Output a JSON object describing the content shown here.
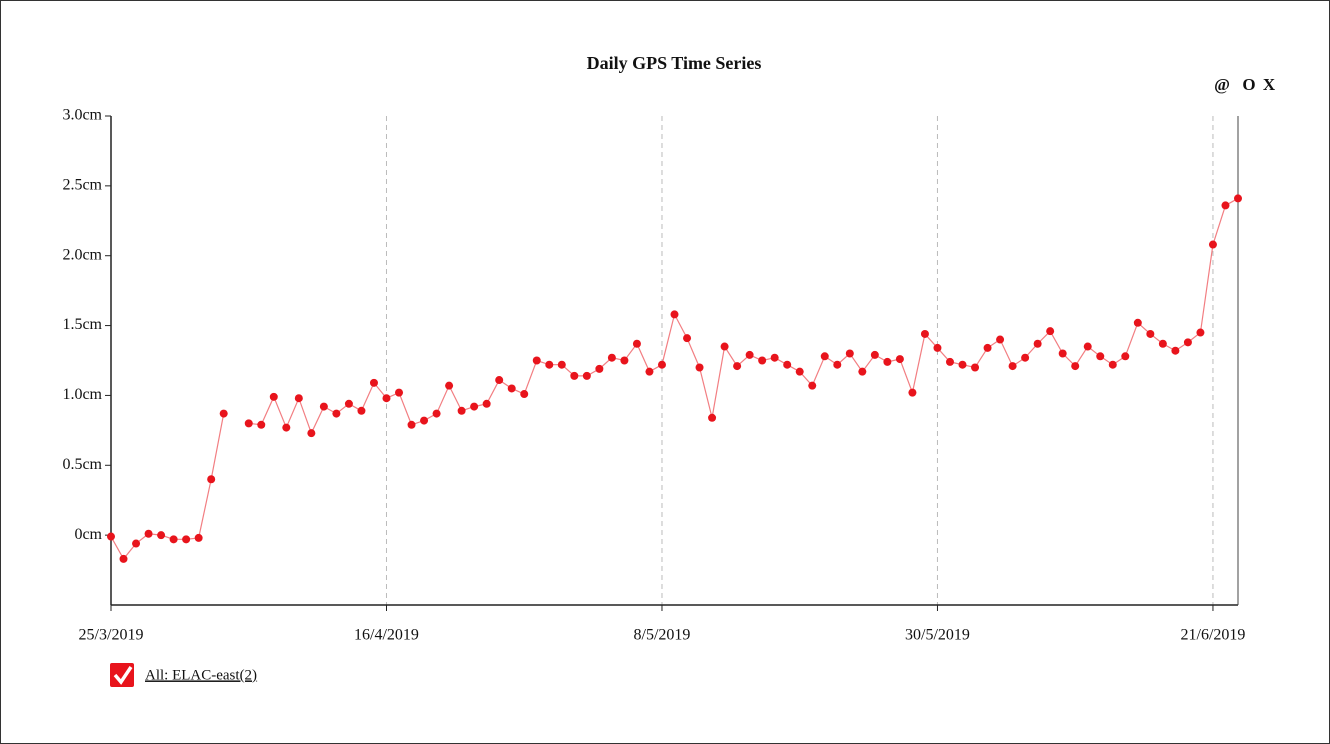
{
  "chart_data": {
    "type": "line",
    "title": "Daily GPS Time Series",
    "x": [
      "2019-03-25",
      "2019-03-26",
      "2019-03-27",
      "2019-03-28",
      "2019-03-29",
      "2019-03-30",
      "2019-03-31",
      "2019-04-01",
      "2019-04-02",
      "2019-04-03",
      "2019-04-04",
      "2019-04-05",
      "2019-04-06",
      "2019-04-07",
      "2019-04-08",
      "2019-04-09",
      "2019-04-10",
      "2019-04-11",
      "2019-04-12",
      "2019-04-13",
      "2019-04-14",
      "2019-04-15",
      "2019-04-16",
      "2019-04-17",
      "2019-04-18",
      "2019-04-19",
      "2019-04-20",
      "2019-04-21",
      "2019-04-22",
      "2019-04-23",
      "2019-04-24",
      "2019-04-25",
      "2019-04-26",
      "2019-04-27",
      "2019-04-28",
      "2019-04-29",
      "2019-04-30",
      "2019-05-01",
      "2019-05-02",
      "2019-05-03",
      "2019-05-04",
      "2019-05-05",
      "2019-05-06",
      "2019-05-07",
      "2019-05-08",
      "2019-05-09",
      "2019-05-10",
      "2019-05-11",
      "2019-05-12",
      "2019-05-13",
      "2019-05-14",
      "2019-05-15",
      "2019-05-16",
      "2019-05-17",
      "2019-05-18",
      "2019-05-19",
      "2019-05-20",
      "2019-05-21",
      "2019-05-22",
      "2019-05-23",
      "2019-05-24",
      "2019-05-25",
      "2019-05-26",
      "2019-05-27",
      "2019-05-28",
      "2019-05-29",
      "2019-05-30",
      "2019-05-31",
      "2019-06-01",
      "2019-06-02",
      "2019-06-03",
      "2019-06-04",
      "2019-06-05",
      "2019-06-06",
      "2019-06-07",
      "2019-06-08",
      "2019-06-09",
      "2019-06-10",
      "2019-06-11",
      "2019-06-12",
      "2019-06-13",
      "2019-06-14",
      "2019-06-15",
      "2019-06-16",
      "2019-06-17",
      "2019-06-18",
      "2019-06-19",
      "2019-06-20",
      "2019-06-21",
      "2019-06-22",
      "2019-06-23"
    ],
    "series": [
      {
        "name": "All: ELAC-east(2)",
        "color": "#e8141c",
        "values": [
          -0.01,
          -0.17,
          -0.06,
          0.01,
          0.0,
          -0.03,
          -0.03,
          -0.02,
          0.4,
          0.87,
          null,
          0.8,
          0.79,
          0.99,
          0.77,
          0.98,
          0.73,
          0.92,
          0.87,
          0.94,
          0.89,
          1.09,
          0.98,
          1.02,
          0.79,
          0.82,
          0.87,
          1.07,
          0.89,
          0.92,
          0.94,
          1.11,
          1.05,
          1.01,
          1.25,
          1.22,
          1.22,
          1.14,
          1.14,
          1.19,
          1.27,
          1.25,
          1.37,
          1.17,
          1.22,
          1.58,
          1.41,
          1.2,
          0.84,
          1.35,
          1.21,
          1.29,
          1.25,
          1.27,
          1.22,
          1.17,
          1.07,
          1.28,
          1.22,
          1.3,
          1.17,
          1.29,
          1.24,
          1.26,
          1.02,
          1.44,
          1.34,
          1.24,
          1.22,
          1.2,
          1.34,
          1.4,
          1.21,
          1.27,
          1.37,
          1.46,
          1.3,
          1.21,
          1.35,
          1.28,
          1.22,
          1.28,
          1.52,
          1.44,
          1.37,
          1.32,
          1.38,
          1.45,
          2.08,
          2.36,
          2.41
        ]
      }
    ],
    "xlim": [
      "2019-03-25",
      "2019-06-23"
    ],
    "xticks": [
      {
        "value": "2019-03-25",
        "label": "25/3/2019"
      },
      {
        "value": "2019-04-16",
        "label": "16/4/2019"
      },
      {
        "value": "2019-05-08",
        "label": "8/5/2019"
      },
      {
        "value": "2019-05-30",
        "label": "30/5/2019"
      },
      {
        "value": "2019-06-21",
        "label": "21/6/2019"
      }
    ],
    "ylim": [
      -0.5,
      3.0
    ],
    "yticks": [
      {
        "value": 0,
        "label": "0cm"
      },
      {
        "value": 0.5,
        "label": "0.5cm"
      },
      {
        "value": 1.0,
        "label": "1.0cm"
      },
      {
        "value": 1.5,
        "label": "1.5cm"
      },
      {
        "value": 2.0,
        "label": "2.0cm"
      },
      {
        "value": 2.5,
        "label": "2.5cm"
      },
      {
        "value": 3.0,
        "label": "3.0cm"
      }
    ],
    "grid": "x"
  },
  "toolbar": [
    "@",
    "O",
    "X"
  ]
}
